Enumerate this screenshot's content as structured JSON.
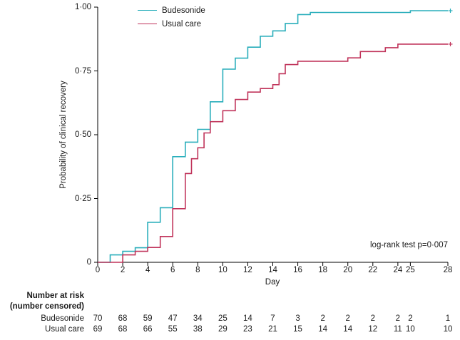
{
  "chart_data": {
    "type": "line",
    "subtype": "kaplan-meier-step-curves",
    "title": "",
    "xlabel": "Day",
    "ylabel": "Probability of clinical recovery",
    "xlim": [
      0,
      28
    ],
    "ylim": [
      0,
      1
    ],
    "grid": false,
    "legend_position": "top-left-inside",
    "annotation": "log-rank test p=0·007",
    "x_ticks": {
      "values": [
        0,
        2,
        4,
        6,
        8,
        10,
        12,
        14,
        16,
        18,
        20,
        22,
        24,
        25,
        28
      ],
      "labels": [
        "0",
        "2",
        "4",
        "6",
        "8",
        "10",
        "12",
        "14",
        "16",
        "18",
        "20",
        "22",
        "24",
        "25",
        "28"
      ]
    },
    "y_ticks": {
      "values": [
        0,
        0.25,
        0.5,
        0.75,
        1.0
      ],
      "labels": [
        "0",
        "0·25",
        "0·50",
        "0·75",
        "1·00"
      ]
    },
    "colors": {
      "budesonide": "#29aebb",
      "usual_care": "#c0335a",
      "axis": "#000000",
      "text": "#1a1a1a"
    },
    "series": [
      {
        "name": "Budesonide",
        "color": "#29aebb",
        "steps": [
          [
            0,
            0
          ],
          [
            1,
            0.029
          ],
          [
            2,
            0.043
          ],
          [
            3,
            0.057
          ],
          [
            4,
            0.157
          ],
          [
            5,
            0.214
          ],
          [
            6,
            0.414
          ],
          [
            7,
            0.471
          ],
          [
            8,
            0.521
          ],
          [
            9,
            0.629
          ],
          [
            10,
            0.757
          ],
          [
            11,
            0.8
          ],
          [
            12,
            0.843
          ],
          [
            13,
            0.886
          ],
          [
            14,
            0.907
          ],
          [
            15,
            0.936
          ],
          [
            16,
            0.971
          ],
          [
            17,
            0.979
          ],
          [
            25,
            0.986
          ],
          [
            28,
            0.986
          ]
        ],
        "censor_marks": [
          [
            28,
            0.986
          ]
        ]
      },
      {
        "name": "Usual care",
        "color": "#c0335a",
        "steps": [
          [
            0,
            0
          ],
          [
            2,
            0.029
          ],
          [
            3,
            0.043
          ],
          [
            4,
            0.058
          ],
          [
            5,
            0.101
          ],
          [
            6,
            0.21
          ],
          [
            7,
            0.348
          ],
          [
            7.5,
            0.406
          ],
          [
            8,
            0.449
          ],
          [
            8.5,
            0.507
          ],
          [
            9,
            0.551
          ],
          [
            10,
            0.594
          ],
          [
            11,
            0.638
          ],
          [
            12,
            0.667
          ],
          [
            13,
            0.681
          ],
          [
            14,
            0.696
          ],
          [
            14.5,
            0.739
          ],
          [
            15,
            0.775
          ],
          [
            16,
            0.788
          ],
          [
            20,
            0.801
          ],
          [
            21,
            0.826
          ],
          [
            23,
            0.841
          ],
          [
            24,
            0.855
          ],
          [
            28,
            0.855
          ]
        ],
        "censor_marks": [
          [
            28,
            0.855
          ]
        ]
      }
    ],
    "risk_table": {
      "header_line1": "Number at risk",
      "header_line2": "(number censored)",
      "time_points": [
        0,
        2,
        4,
        6,
        8,
        10,
        12,
        14,
        16,
        18,
        20,
        22,
        24,
        25,
        28
      ],
      "rows": [
        {
          "label": "Budesonide",
          "counts": [
            70,
            68,
            59,
            47,
            34,
            25,
            14,
            7,
            3,
            2,
            2,
            2,
            2,
            2,
            1
          ]
        },
        {
          "label": "Usual care",
          "counts": [
            69,
            68,
            66,
            55,
            38,
            29,
            23,
            21,
            15,
            14,
            14,
            12,
            11,
            10,
            10
          ]
        }
      ]
    }
  }
}
